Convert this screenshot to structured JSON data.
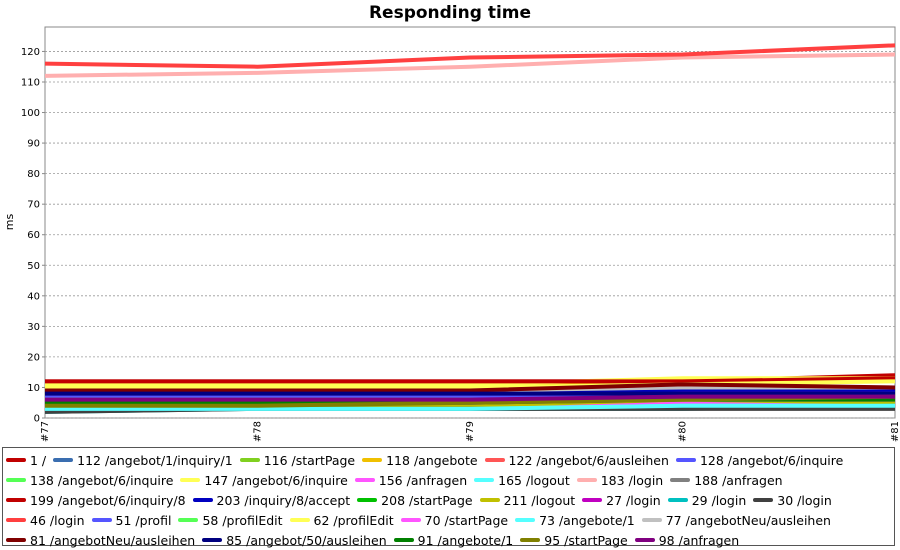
{
  "chart_data": {
    "type": "line",
    "title": "Responding time",
    "y_label": "ms",
    "categories": [
      "#77",
      "#78",
      "#79",
      "#80",
      "#81"
    ],
    "ylim": [
      0,
      128
    ],
    "yticks": [
      0,
      10,
      20,
      30,
      40,
      50,
      60,
      70,
      80,
      90,
      100,
      110,
      120
    ],
    "grid": true,
    "series": [
      {
        "name": "1 /",
        "color": "#c00000",
        "values": [
          12,
          12,
          12,
          12,
          14
        ]
      },
      {
        "name": "112 /angebot/1/inquiry/1",
        "color": "#3a6eb0",
        "values": [
          6,
          6,
          6,
          7,
          7
        ]
      },
      {
        "name": "116 /startPage",
        "color": "#80d020",
        "values": [
          5,
          5,
          5,
          6,
          6
        ]
      },
      {
        "name": "118 /angebote",
        "color": "#f0c000",
        "values": [
          10,
          10,
          10,
          12,
          13
        ]
      },
      {
        "name": "122 /angebot/6/ausleihen",
        "color": "#ff5555",
        "values": [
          5,
          4,
          4,
          5,
          5
        ]
      },
      {
        "name": "128 /angebot/6/inquire",
        "color": "#5555ff",
        "values": [
          7,
          7,
          7,
          8,
          8
        ]
      },
      {
        "name": "138 /angebot/6/inquire",
        "color": "#55ff55",
        "values": [
          6,
          6,
          6,
          7,
          7
        ]
      },
      {
        "name": "147 /angebot/6/inquire",
        "color": "#ffff55",
        "values": [
          11,
          11,
          11,
          13,
          13
        ]
      },
      {
        "name": "156 /anfragen",
        "color": "#ff55ff",
        "values": [
          4,
          4,
          4,
          5,
          5
        ]
      },
      {
        "name": "165 /logout",
        "color": "#55ffff",
        "values": [
          3,
          3,
          3,
          4,
          4
        ]
      },
      {
        "name": "183 /login",
        "color": "#ffafaf",
        "values": [
          112,
          113,
          115,
          118,
          119
        ]
      },
      {
        "name": "188 /anfragen",
        "color": "#808080",
        "values": [
          9,
          9,
          9,
          10,
          9
        ]
      },
      {
        "name": "199 /angebot/6/inquiry/8",
        "color": "#c00000",
        "values": [
          12,
          12,
          12,
          12,
          13
        ]
      },
      {
        "name": "203 /inquiry/8/accept",
        "color": "#0000c0",
        "values": [
          8,
          8,
          8,
          9,
          9
        ]
      },
      {
        "name": "208 /startPage",
        "color": "#00c000",
        "values": [
          5,
          5,
          5,
          6,
          6
        ]
      },
      {
        "name": "211 /logout",
        "color": "#c0c000",
        "values": [
          4,
          4,
          4,
          6,
          5
        ]
      },
      {
        "name": "27 /login",
        "color": "#c000c0",
        "values": [
          6,
          6,
          6,
          8,
          8
        ]
      },
      {
        "name": "29 /login",
        "color": "#00c0c0",
        "values": [
          2,
          3,
          3,
          3,
          4
        ]
      },
      {
        "name": "30 /login",
        "color": "#404040",
        "values": [
          2,
          3,
          3,
          3,
          3
        ]
      },
      {
        "name": "46 /login",
        "color": "#ff4040",
        "values": [
          116,
          115,
          118,
          119,
          122
        ]
      },
      {
        "name": "51 /profil",
        "color": "#5555ff",
        "values": [
          7,
          7,
          7,
          7,
          8
        ]
      },
      {
        "name": "58 /profilEdit",
        "color": "#55ff55",
        "values": [
          6,
          6,
          6,
          6,
          7
        ]
      },
      {
        "name": "62 /profilEdit",
        "color": "#ffff55",
        "values": [
          10,
          10,
          10,
          11,
          12
        ]
      },
      {
        "name": "70 /startPage",
        "color": "#ff55ff",
        "values": [
          5,
          5,
          5,
          6,
          6
        ]
      },
      {
        "name": "73 /angebote/1",
        "color": "#55ffff",
        "values": [
          3,
          3,
          3,
          4,
          4
        ]
      },
      {
        "name": "77 /angebotNeu/ausleihen",
        "color": "#c0c0c0",
        "values": [
          9,
          9,
          9,
          10,
          10
        ]
      },
      {
        "name": "81 /angebotNeu/ausleihen",
        "color": "#800000",
        "values": [
          9,
          9,
          9,
          11,
          10
        ]
      },
      {
        "name": "85 /angebot/50/ausleihen",
        "color": "#000080",
        "values": [
          8,
          8,
          8,
          8,
          8
        ]
      },
      {
        "name": "91 /angebote/1",
        "color": "#008000",
        "values": [
          5,
          5,
          5,
          6,
          6
        ]
      },
      {
        "name": "95 /startPage",
        "color": "#808000",
        "values": [
          4,
          4,
          5,
          6,
          7
        ]
      },
      {
        "name": "98 /anfragen",
        "color": "#800080",
        "values": [
          6,
          6,
          6,
          7,
          7
        ]
      }
    ]
  }
}
